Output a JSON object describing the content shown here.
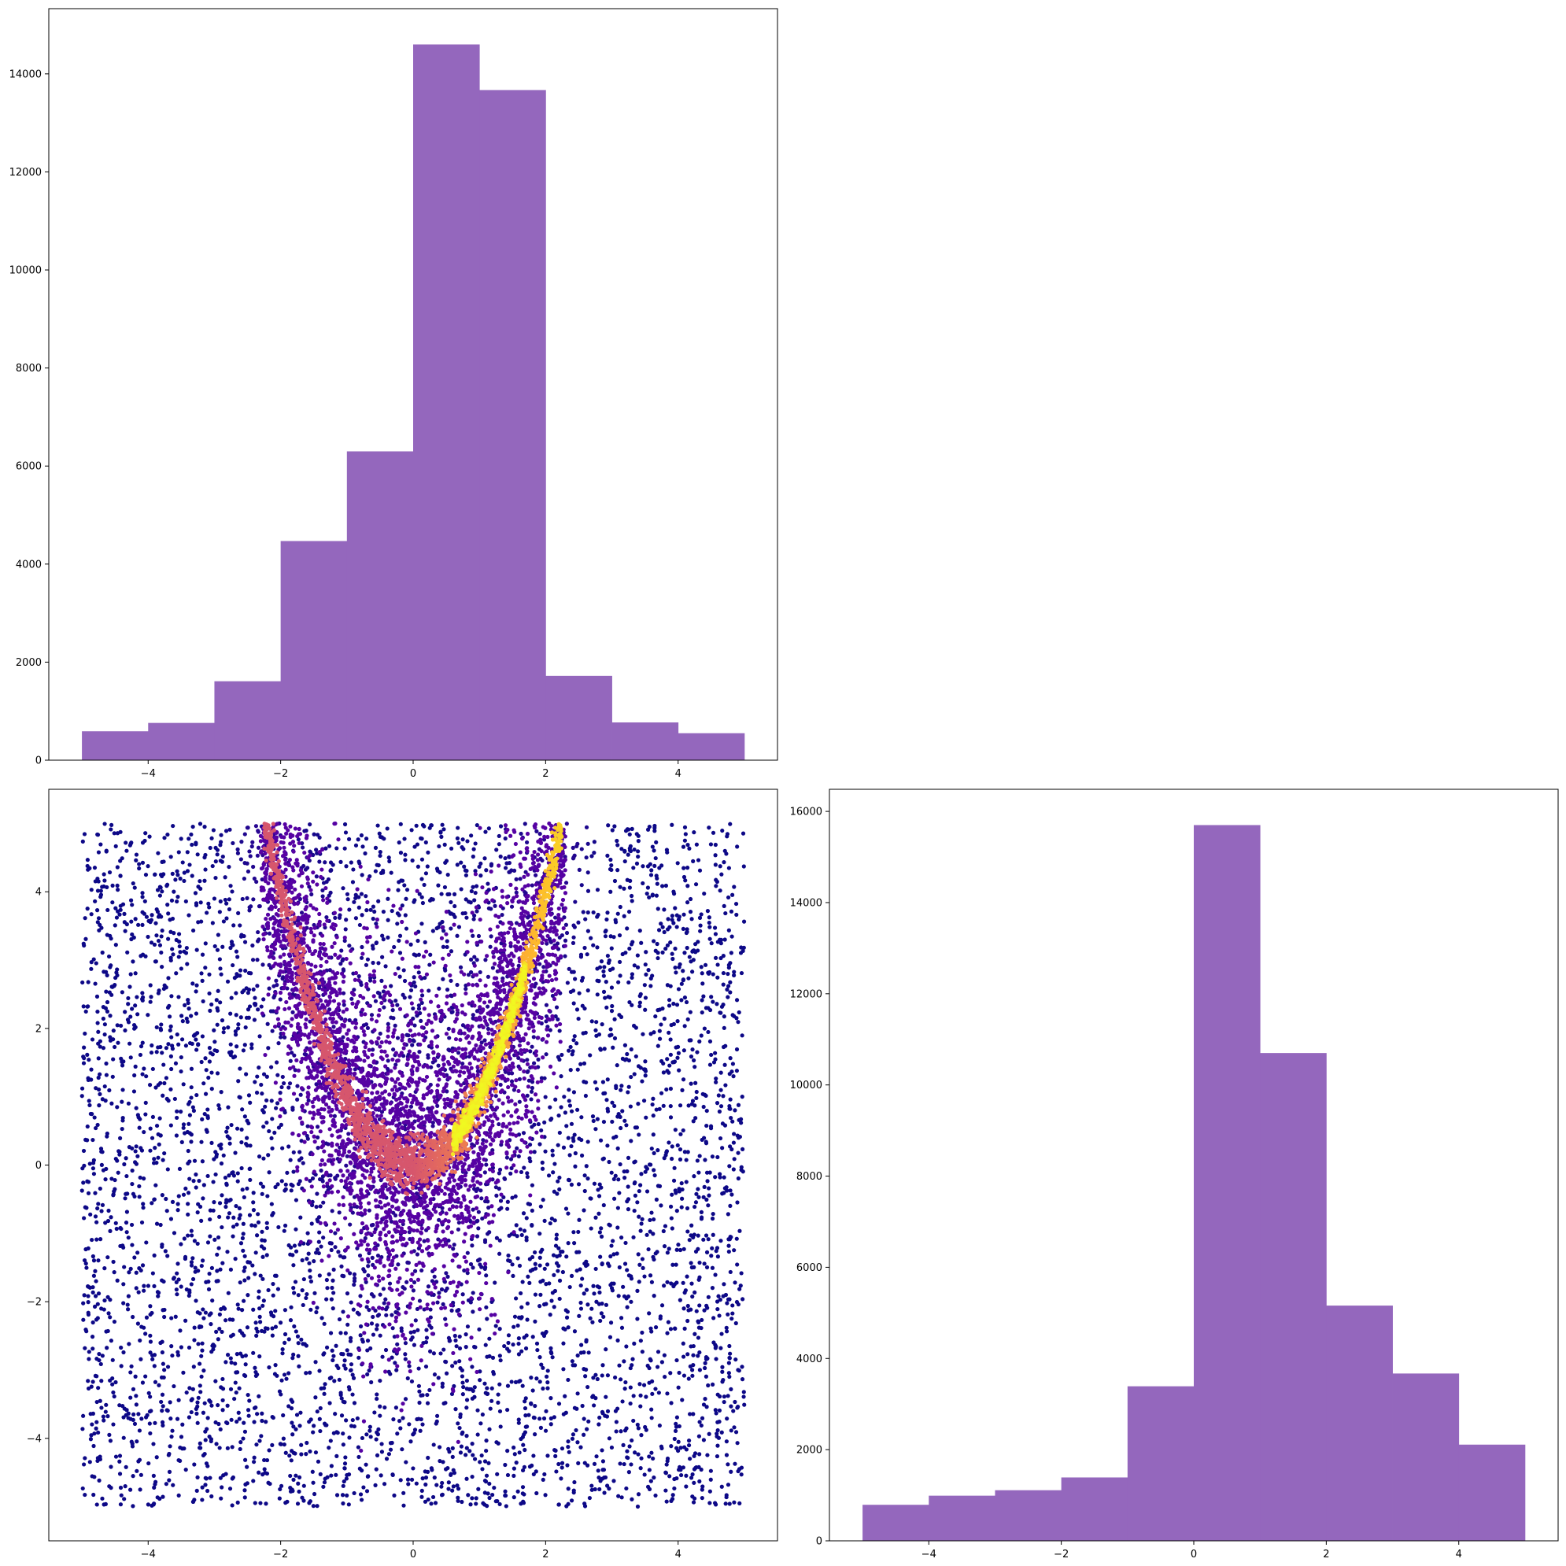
{
  "figure": {
    "background": "#ffffff"
  },
  "chart_data": [
    {
      "id": "hist_x",
      "type": "bar",
      "panel": "top-left",
      "title": "",
      "xlabel": "",
      "ylabel": "",
      "bin_edges": [
        -5,
        -4,
        -3,
        -2,
        -1,
        0,
        1,
        2,
        3,
        4,
        5
      ],
      "values": [
        590,
        760,
        1610,
        4470,
        6300,
        14600,
        13670,
        1720,
        770,
        550
      ],
      "xlim": [
        -5.5,
        5.5
      ],
      "ylim": [
        0,
        15330
      ],
      "xticks": [
        -4,
        -2,
        0,
        2,
        4
      ],
      "yticks": [
        0,
        2000,
        4000,
        6000,
        8000,
        10000,
        12000,
        14000
      ],
      "xtick_labels": [
        "−4",
        "−2",
        "0",
        "2",
        "4"
      ],
      "ytick_labels": [
        "0",
        "2000",
        "4000",
        "6000",
        "8000",
        "10000",
        "12000",
        "14000"
      ],
      "color": "#9467bd",
      "grid": false
    },
    {
      "id": "scatter_xy",
      "type": "scatter",
      "panel": "bottom-left",
      "title": "",
      "xlabel": "",
      "ylabel": "",
      "xlim": [
        -5.5,
        5.5
      ],
      "ylim": [
        -5.5,
        5.5
      ],
      "xticks": [
        -4,
        -2,
        0,
        2,
        4
      ],
      "yticks": [
        -4,
        -2,
        0,
        2,
        4
      ],
      "xtick_labels": [
        "−4",
        "−2",
        "0",
        "2",
        "4"
      ],
      "ytick_labels": [
        "−4",
        "−2",
        "0",
        "2",
        "4"
      ],
      "colormap": "plasma",
      "colormap_stops": [
        "#0d0887",
        "#5302a3",
        "#8b0aa5",
        "#b83289",
        "#db5c68",
        "#f48849",
        "#febd2a",
        "#f0f921"
      ],
      "density_ridge": "y = x²",
      "grid": false
    },
    {
      "id": "hist_y",
      "type": "bar",
      "panel": "bottom-right",
      "title": "",
      "xlabel": "",
      "ylabel": "",
      "bin_edges": [
        -5,
        -4,
        -3,
        -2,
        -1,
        0,
        1,
        2,
        3,
        4,
        5
      ],
      "values": [
        790,
        990,
        1110,
        1390,
        3390,
        15700,
        10700,
        5160,
        3670,
        2110
      ],
      "xlim": [
        -5.5,
        5.5
      ],
      "ylim": [
        0,
        16485
      ],
      "xticks": [
        -4,
        -2,
        0,
        2,
        4
      ],
      "yticks": [
        0,
        2000,
        4000,
        6000,
        8000,
        10000,
        12000,
        14000,
        16000
      ],
      "xtick_labels": [
        "−4",
        "−2",
        "0",
        "2",
        "4"
      ],
      "ytick_labels": [
        "0",
        "2000",
        "4000",
        "6000",
        "8000",
        "10000",
        "12000",
        "14000",
        "16000"
      ],
      "color": "#9467bd",
      "grid": false
    }
  ]
}
